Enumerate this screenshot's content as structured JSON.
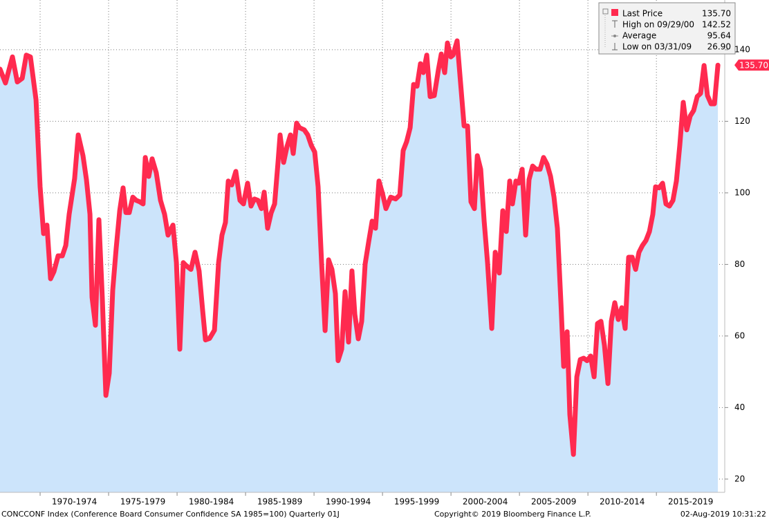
{
  "chart_data": {
    "type": "area-line",
    "x": [
      1967.07,
      1967.47,
      1967.98,
      1968.33,
      1968.69,
      1968.99,
      1969.29,
      1969.7,
      1970.0,
      1970.25,
      1970.5,
      1970.76,
      1971.01,
      1971.31,
      1971.62,
      1971.87,
      1972.12,
      1972.52,
      1972.78,
      1973.13,
      1973.38,
      1973.64,
      1973.79,
      1974.04,
      1974.29,
      1974.54,
      1974.8,
      1975.05,
      1975.3,
      1975.55,
      1975.81,
      1976.06,
      1976.26,
      1976.51,
      1976.77,
      1977.02,
      1977.27,
      1977.52,
      1977.68,
      1977.93,
      1978.18,
      1978.48,
      1978.79,
      1979.09,
      1979.34,
      1979.7,
      1979.95,
      1980.2,
      1980.45,
      1980.71,
      1981.01,
      1981.31,
      1981.61,
      1981.87,
      1982.07,
      1982.37,
      1982.73,
      1983.03,
      1983.28,
      1983.53,
      1983.74,
      1983.99,
      1984.29,
      1984.59,
      1984.85,
      1985.15,
      1985.4,
      1985.65,
      1985.91,
      1986.16,
      1986.36,
      1986.61,
      1986.87,
      1987.12,
      1987.37,
      1987.52,
      1987.78,
      1988.03,
      1988.28,
      1988.48,
      1988.73,
      1988.94,
      1989.29,
      1989.54,
      1989.8,
      1990.05,
      1990.3,
      1990.55,
      1990.81,
      1991.06,
      1991.31,
      1991.56,
      1991.76,
      1992.02,
      1992.27,
      1992.52,
      1992.77,
      1992.98,
      1993.23,
      1993.48,
      1993.73,
      1993.99,
      1994.24,
      1994.49,
      1994.74,
      1995.0,
      1995.25,
      1995.6,
      1995.96,
      1996.26,
      1996.51,
      1996.76,
      1997.02,
      1997.27,
      1997.52,
      1997.77,
      1997.98,
      1998.23,
      1998.48,
      1998.78,
      1999.09,
      1999.29,
      1999.54,
      1999.74,
      1999.99,
      2000.15,
      2000.45,
      2000.7,
      2000.96,
      2001.21,
      2001.46,
      2001.71,
      2001.92,
      2002.17,
      2002.42,
      2002.67,
      2002.98,
      2003.23,
      2003.53,
      2003.78,
      2004.04,
      2004.29,
      2004.49,
      2004.74,
      2004.95,
      2005.2,
      2005.45,
      2005.7,
      2005.96,
      2006.21,
      2006.51,
      2006.76,
      2007.02,
      2007.27,
      2007.52,
      2007.77,
      2008.03,
      2008.23,
      2008.48,
      2008.68,
      2008.94,
      2009.19,
      2009.44,
      2009.69,
      2009.94,
      2010.2,
      2010.45,
      2010.7,
      2010.95,
      2011.21,
      2011.46,
      2011.71,
      2011.96,
      2012.22,
      2012.47,
      2012.72,
      2012.97,
      2013.23,
      2013.48,
      2013.73,
      2013.98,
      2014.24,
      2014.49,
      2014.74,
      2014.94,
      2015.2,
      2015.45,
      2015.7,
      2015.95,
      2016.21,
      2016.46,
      2016.71,
      2016.96,
      2017.22,
      2017.47,
      2017.72,
      2017.98,
      2018.23,
      2018.48,
      2018.73,
      2018.99,
      2019.24,
      2019.49
    ],
    "series": [
      {
        "color": "#ff2a4f",
        "fill": "#cce4fb",
        "values": [
          134.6,
          130.7,
          138,
          131,
          132,
          138.5,
          138,
          126,
          101.7,
          88.6,
          91,
          76,
          78,
          82.4,
          82.4,
          85.3,
          94,
          104,
          116.2,
          110.4,
          103.7,
          94,
          70.8,
          63,
          92.5,
          70.8,
          43.4,
          49.6,
          72.8,
          84.3,
          95,
          101.4,
          94.5,
          94.5,
          98.8,
          97.9,
          97.5,
          96.9,
          109.9,
          104.6,
          109.5,
          105.6,
          97.9,
          94,
          88.2,
          91,
          80.5,
          56.3,
          80.5,
          79.5,
          78.6,
          83.4,
          78.2,
          67,
          58.9,
          59.3,
          61.6,
          80.5,
          88.2,
          91.7,
          103.3,
          102.2,
          106,
          97.9,
          96.9,
          102.7,
          96.3,
          98.3,
          97.9,
          95.6,
          100.2,
          90.1,
          94.4,
          96.9,
          108.5,
          116.2,
          108.5,
          113,
          116.2,
          111,
          119.5,
          118.2,
          117.6,
          116.2,
          113.3,
          111.4,
          101.7,
          80.5,
          61.5,
          81.3,
          78.6,
          71.8,
          53.1,
          56.3,
          72.4,
          58.3,
          78.2,
          66,
          59.2,
          64.1,
          80.1,
          86.3,
          92.1,
          90.1,
          103.3,
          99.8,
          95.6,
          98.8,
          98.3,
          99.4,
          111.8,
          114.3,
          118.2,
          130.3,
          129.8,
          136.1,
          133.6,
          138.5,
          126.9,
          127.2,
          134.6,
          138.8,
          133.6,
          141.9,
          138,
          138.5,
          142.5,
          130.7,
          118.7,
          118.7,
          97.5,
          95.6,
          110.4,
          106.6,
          92.1,
          80.5,
          62.1,
          83.4,
          77.6,
          95,
          89.2,
          103.3,
          96.9,
          103.3,
          102.7,
          106.6,
          88.2,
          103.7,
          107.5,
          106.6,
          106.6,
          109.9,
          108,
          104.6,
          98.8,
          90.1,
          68.9,
          51.5,
          61.2,
          38,
          26.9,
          48.6,
          53.4,
          53.8,
          53.1,
          54.4,
          48.6,
          63.5,
          64.1,
          57.3,
          46.7,
          64.1,
          69.3,
          64.6,
          67.9,
          62.1,
          82,
          82,
          78.6,
          83.4,
          85.3,
          86.7,
          89.2,
          94,
          101.7,
          101.4,
          102.7,
          96.9,
          96.3,
          97.9,
          103.3,
          113.3,
          125.3,
          117.6,
          121.5,
          123,
          126.9,
          127.8,
          135.6,
          127.2,
          124.9,
          124.9,
          135.7
        ]
      }
    ],
    "xlim": [
      1967.07,
      2019.99
    ],
    "xticks": [
      {
        "value": 1970,
        "label": "1970-1974"
      },
      {
        "value": 1975,
        "label": "1975-1979"
      },
      {
        "value": 1980,
        "label": "1980-1984"
      },
      {
        "value": 1985,
        "label": "1985-1989"
      },
      {
        "value": 1990,
        "label": "1990-1994"
      },
      {
        "value": 1995,
        "label": "1995-1999"
      },
      {
        "value": 2000,
        "label": "2000-2004"
      },
      {
        "value": 2005,
        "label": "2005-2009"
      },
      {
        "value": 2010,
        "label": "2010-2014"
      },
      {
        "value": 2015,
        "label": "2015-2019"
      }
    ],
    "ylim": [
      16.3,
      153.9
    ],
    "yticks": [
      20,
      40,
      60,
      80,
      100,
      120,
      140
    ],
    "grid": true,
    "stats": [
      {
        "name": "Last Price",
        "value": {
          "value": 135.7,
          "label": "135.70"
        }
      },
      {
        "name": "High on 09/29/00",
        "value": 142.52
      },
      {
        "name": "Average",
        "value": 95.64
      },
      {
        "name": "Low on 03/31/09",
        "value": {
          "value": 26.9,
          "label": "26.90"
        }
      }
    ],
    "footer": {
      "source": "CONCCONF Index (Conference Board Consumer Confidence SA 1985=100)  Quarterly 01J",
      "copyright": "Copyright© 2019 Bloomberg Finance L.P.",
      "timestamp": "02-Aug-2019 10:31:22"
    }
  }
}
